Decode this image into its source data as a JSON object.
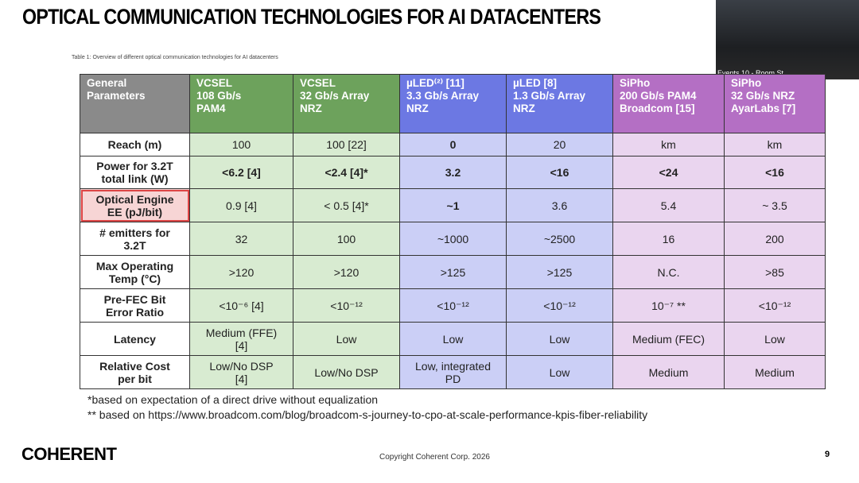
{
  "header": {
    "title": "OPTICAL COMMUNICATION TECHNOLOGIES FOR AI DATACENTERS",
    "caption": "Table 1: Overview of different optical communication technologies for AI datacenters"
  },
  "video": {
    "label": "Events 10 - Room St..."
  },
  "table": {
    "columns": [
      "General\nParameters",
      "VCSEL\n108 Gb/s\nPAM4",
      "VCSEL\n 32 Gb/s Array\nNRZ",
      "µLED⁽²⁾ [11]\n3.3 Gb/s Array\nNRZ",
      "µLED [8]\n1.3 Gb/s Array\nNRZ",
      "SiPho\n200 Gb/s PAM4\nBroadcom [15]",
      "SiPho\n32 Gb/s NRZ\nAyarLabs [7]"
    ],
    "rows": [
      [
        "Reach (m)",
        "100",
        "100 [22]",
        "0",
        "20",
        "km",
        "km"
      ],
      [
        "Power for 3.2T\ntotal link (W)",
        "<6.2 [4]",
        "<2.4 [4]*",
        "3.2",
        "<16",
        "<24",
        "<16"
      ],
      [
        "Optical Engine\nEE (pJ/bit)",
        "0.9 [4]",
        "< 0.5 [4]*",
        "~1",
        "3.6",
        "5.4",
        "~ 3.5"
      ],
      [
        "# emitters for\n3.2T",
        "32",
        "100",
        "~1000",
        "~2500",
        "16",
        "200"
      ],
      [
        "Max Operating\nTemp (°C)",
        ">120",
        ">120",
        ">125",
        ">125",
        "N.C.",
        ">85"
      ],
      [
        "Pre-FEC Bit\nError Ratio",
        "<10⁻⁶ [4]",
        "<10⁻¹²",
        "<10⁻¹²",
        "<10⁻¹²",
        "10⁻⁷ **",
        "<10⁻¹²"
      ],
      [
        "Latency",
        "Medium (FFE)\n[4]",
        "Low",
        "Low",
        "Low",
        "Medium (FEC)",
        "Low"
      ],
      [
        "Relative Cost\nper bit",
        "Low/No DSP\n[4]",
        "Low/No DSP",
        "Low, integrated\nPD",
        "Low",
        "Medium",
        "Medium"
      ]
    ]
  },
  "footnotes": [
    "*based on expectation of a direct drive without equalization",
    "** based on https://www.broadcom.com/blog/broadcom-s-journey-to-cpo-at-scale-performance-kpis-fiber-reliability"
  ],
  "footer": {
    "logo": "COHERENT",
    "copyright": "Copyright Coherent Corp. 2026",
    "page": "9"
  }
}
